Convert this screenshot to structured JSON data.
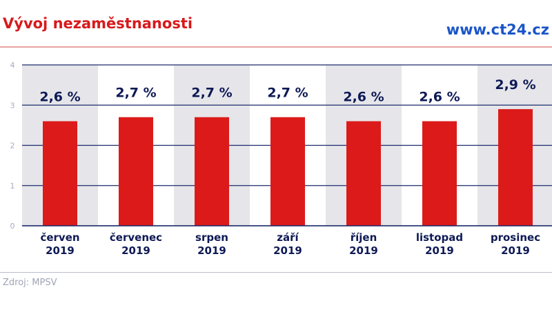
{
  "header": {
    "title": "Vývoj nezaměstnanosti",
    "brand": "www.ct24.cz"
  },
  "footer": {
    "source": "Zdroj: MPSV"
  },
  "chart_data": {
    "type": "bar",
    "categories": [
      [
        "červen",
        "2019"
      ],
      [
        "červenec",
        "2019"
      ],
      [
        "srpen",
        "2019"
      ],
      [
        "září",
        "2019"
      ],
      [
        "říjen",
        "2019"
      ],
      [
        "listopad",
        "2019"
      ],
      [
        "prosinec",
        "2019"
      ]
    ],
    "values": [
      2.6,
      2.7,
      2.7,
      2.7,
      2.6,
      2.6,
      2.9
    ],
    "data_labels": [
      "2,6 %",
      "2,7 %",
      "2,7 %",
      "2,7 %",
      "2,6 %",
      "2,6 %",
      "2,9 %"
    ],
    "ylim": [
      0,
      4
    ],
    "yticks": [
      "0",
      "1",
      "2",
      "3",
      "4"
    ],
    "grid": true,
    "colors": {
      "bar": "#dc1a1a",
      "grid": "#1c2a6b",
      "stripe": "#e6e6ea",
      "label": "#0e1a55",
      "tick": "#a7abc0"
    }
  }
}
